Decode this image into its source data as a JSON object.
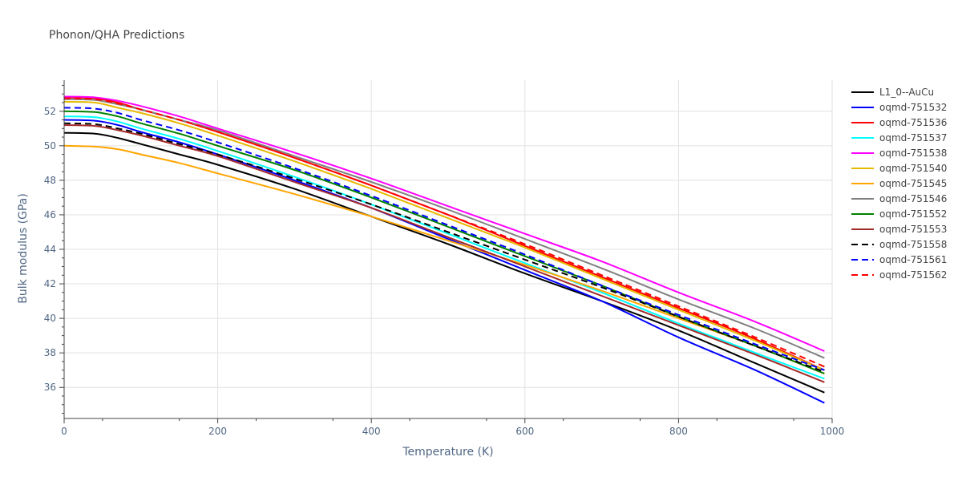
{
  "chart_data": {
    "type": "line",
    "title": "Phonon/QHA Predictions",
    "xlabel": "Temperature (K)",
    "ylabel": "Bulk modulus (GPa)",
    "xlim": [
      0,
      1000
    ],
    "ylim": [
      34.2,
      53.8
    ],
    "xticks": [
      0,
      200,
      400,
      600,
      800,
      1000
    ],
    "yticks": [
      36,
      38,
      40,
      42,
      44,
      46,
      48,
      50,
      52
    ],
    "grid": true,
    "legend_position": "right",
    "x": [
      0,
      40,
      70,
      100,
      150,
      200,
      300,
      400,
      500,
      600,
      700,
      800,
      900,
      990
    ],
    "series": [
      {
        "name": "L1_0--AuCu",
        "color": "#000000",
        "dash": "solid",
        "values": [
          50.75,
          50.7,
          50.45,
          50.1,
          49.5,
          48.9,
          47.5,
          45.9,
          44.3,
          42.6,
          41.0,
          39.3,
          37.4,
          35.7
        ]
      },
      {
        "name": "oqmd-751532",
        "color": "#0000ff",
        "dash": "solid",
        "values": [
          51.5,
          51.45,
          51.2,
          50.8,
          50.2,
          49.5,
          48.0,
          46.4,
          44.6,
          42.8,
          41.0,
          38.9,
          37.0,
          35.1
        ]
      },
      {
        "name": "oqmd-751536",
        "color": "#ff0000",
        "dash": "solid",
        "values": [
          52.8,
          52.75,
          52.5,
          52.1,
          51.5,
          50.8,
          49.3,
          47.7,
          46.0,
          44.2,
          42.4,
          40.6,
          38.8,
          37.0
        ]
      },
      {
        "name": "oqmd-751537",
        "color": "#00ffff",
        "dash": "solid",
        "values": [
          51.7,
          51.65,
          51.4,
          51.0,
          50.4,
          49.7,
          48.2,
          46.6,
          44.9,
          43.2,
          41.5,
          39.7,
          38.0,
          36.5
        ]
      },
      {
        "name": "oqmd-751538",
        "color": "#ff00ff",
        "dash": "solid",
        "values": [
          52.85,
          52.8,
          52.6,
          52.3,
          51.7,
          51.0,
          49.6,
          48.1,
          46.5,
          44.9,
          43.3,
          41.5,
          39.8,
          38.1
        ]
      },
      {
        "name": "oqmd-751540",
        "color": "#e6b800",
        "dash": "solid",
        "values": [
          52.55,
          52.5,
          52.2,
          51.9,
          51.3,
          50.6,
          49.1,
          47.5,
          45.8,
          44.1,
          42.3,
          40.5,
          38.7,
          37.0
        ]
      },
      {
        "name": "oqmd-751545",
        "color": "#ffa500",
        "dash": "solid",
        "values": [
          50.0,
          49.95,
          49.8,
          49.5,
          49.0,
          48.4,
          47.2,
          45.9,
          44.5,
          43.1,
          41.6,
          40.0,
          38.4,
          36.8
        ]
      },
      {
        "name": "oqmd-751546",
        "color": "#808080",
        "dash": "solid",
        "values": [
          52.7,
          52.65,
          52.4,
          52.1,
          51.5,
          50.9,
          49.4,
          47.9,
          46.3,
          44.6,
          42.9,
          41.1,
          39.4,
          37.7
        ]
      },
      {
        "name": "oqmd-751552",
        "color": "#008000",
        "dash": "solid",
        "values": [
          52.0,
          51.95,
          51.7,
          51.3,
          50.7,
          50.0,
          48.6,
          47.0,
          45.3,
          43.6,
          41.9,
          40.1,
          38.4,
          36.8
        ]
      },
      {
        "name": "oqmd-751553",
        "color": "#a52a2a",
        "dash": "solid",
        "values": [
          51.2,
          51.15,
          50.9,
          50.6,
          50.0,
          49.4,
          47.9,
          46.4,
          44.7,
          43.0,
          41.3,
          39.6,
          37.9,
          36.3
        ]
      },
      {
        "name": "oqmd-751558",
        "color": "#000000",
        "dash": "dash",
        "values": [
          51.3,
          51.25,
          51.0,
          50.7,
          50.1,
          49.5,
          48.1,
          46.6,
          45.0,
          43.4,
          41.8,
          40.1,
          38.4,
          36.9
        ]
      },
      {
        "name": "oqmd-751561",
        "color": "#0000ff",
        "dash": "dash",
        "values": [
          52.2,
          52.15,
          51.9,
          51.5,
          50.9,
          50.2,
          48.7,
          47.1,
          45.4,
          43.7,
          41.9,
          40.2,
          38.5,
          37.0
        ]
      },
      {
        "name": "oqmd-751562",
        "color": "#ff0000",
        "dash": "dash",
        "values": [
          52.75,
          52.7,
          52.45,
          52.1,
          51.5,
          50.8,
          49.3,
          47.7,
          46.0,
          44.3,
          42.5,
          40.7,
          38.9,
          37.2
        ]
      }
    ]
  }
}
